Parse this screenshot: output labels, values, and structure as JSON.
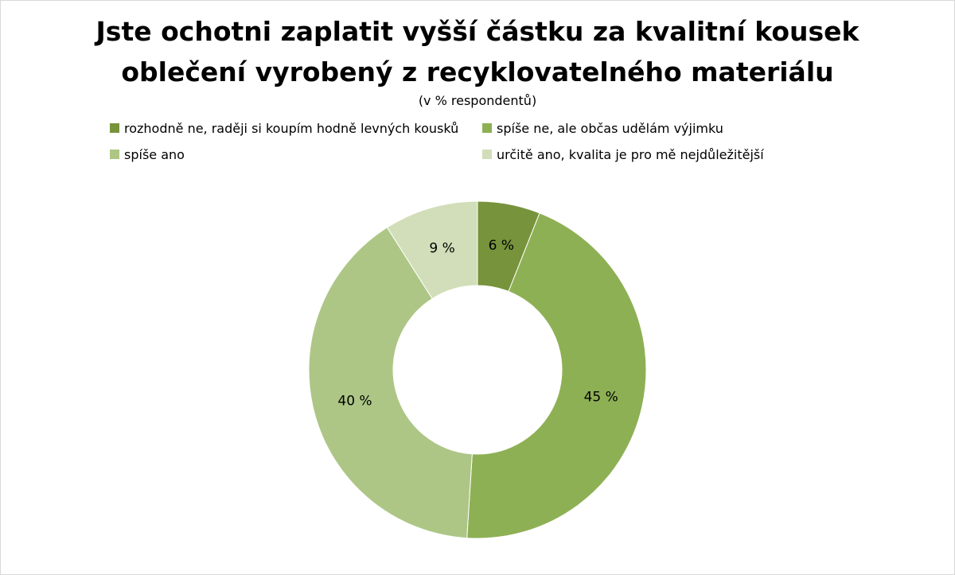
{
  "chart_data": {
    "type": "pie",
    "variant": "donut",
    "title_lines": [
      "Jste ochotni zaplatit vyšší částku za kvalitní kousek",
      "oblečení vyrobený z recyklovatelného materiálu"
    ],
    "subtitle": "(v % respondentů)",
    "legend_placement": "top",
    "slices": [
      {
        "label": "rozhodně ne, raději si koupím hodně levných kousků",
        "value": 6,
        "data_label": "6 %",
        "color": "#77933c"
      },
      {
        "label": "spíše ne, ale občas udělám výjimku",
        "value": 45,
        "data_label": "45 %",
        "color": "#8eb054"
      },
      {
        "label": "spíše ano",
        "value": 40,
        "data_label": "40 %",
        "color": "#adc686"
      },
      {
        "label": "určitě ano, kvalita je pro mě nejdůležitější",
        "value": 9,
        "data_label": "9 %",
        "color": "#d1deb9"
      }
    ]
  }
}
